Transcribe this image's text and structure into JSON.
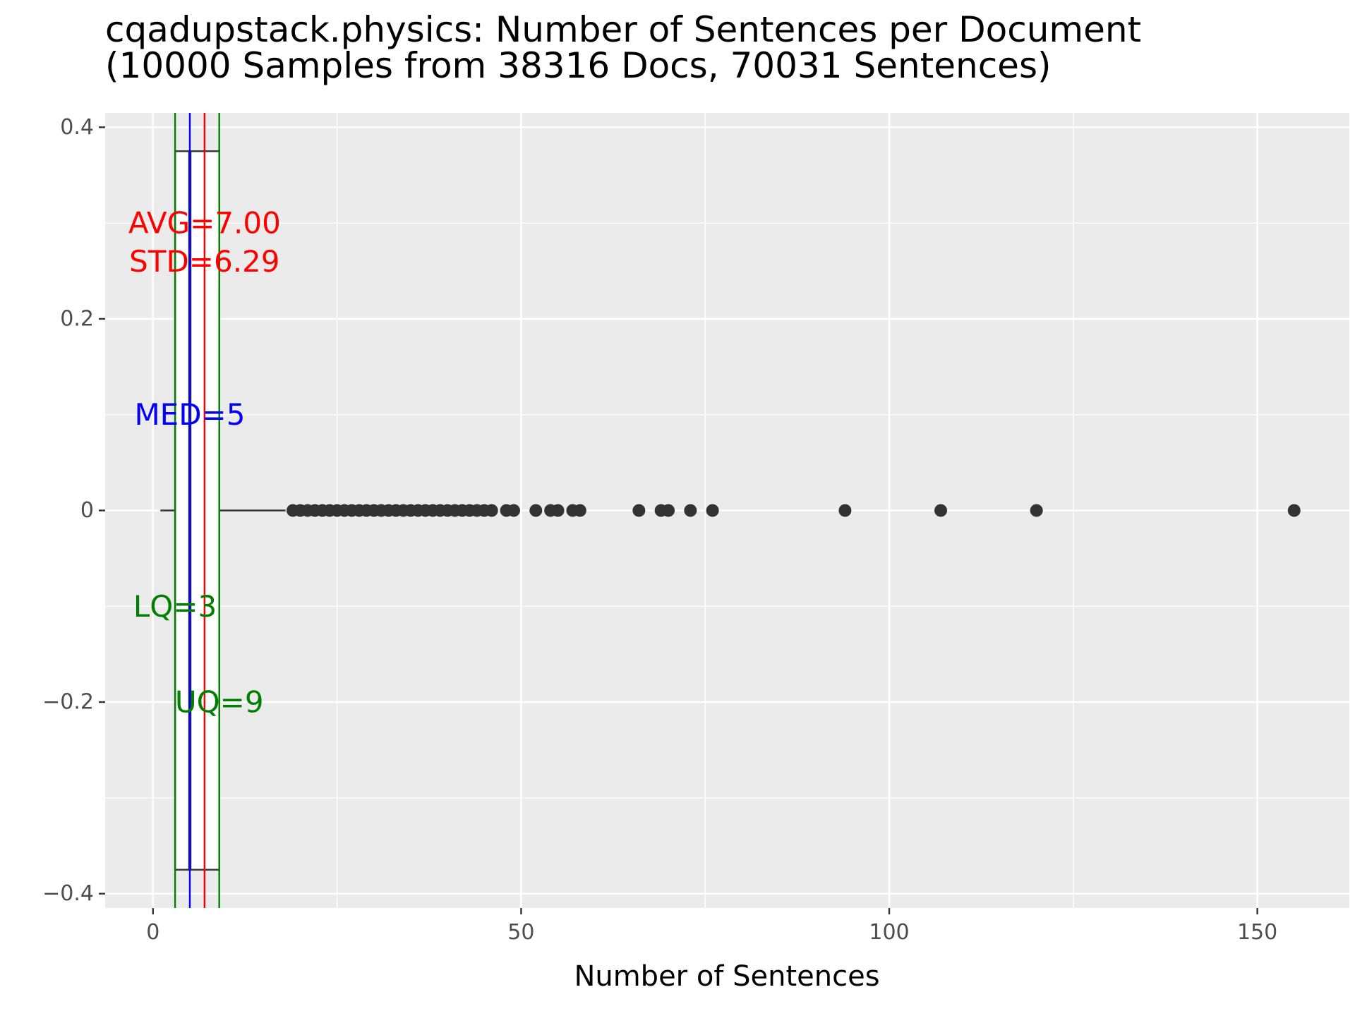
{
  "chart_data": {
    "type": "boxplot",
    "title_lines": [
      "cqadupstack.physics: Number of Sentences per Document",
      "(10000 Samples from 38316 Docs, 70031 Sentences)"
    ],
    "xlabel": "Number of Sentences",
    "ylabel": "",
    "xlim": [
      -6.5,
      162.5
    ],
    "ylim": [
      -0.415,
      0.415
    ],
    "x_ticks": [
      0,
      50,
      100,
      150
    ],
    "x_tick_labels": [
      "0",
      "50",
      "100",
      "150"
    ],
    "y_ticks": [
      -0.4,
      -0.2,
      0,
      0.2,
      0.4
    ],
    "y_tick_labels": [
      "−0.4",
      "−0.2",
      "0",
      "0.2",
      "0.4"
    ],
    "grid": true,
    "box": {
      "lower_whisker": 1,
      "q1": 3,
      "median": 5,
      "q3": 9,
      "upper_whisker": 18,
      "half_width": 0.375
    },
    "outliers": [
      19,
      20,
      21,
      22,
      23,
      24,
      25,
      26,
      27,
      28,
      29,
      30,
      31,
      32,
      33,
      34,
      35,
      36,
      37,
      38,
      39,
      40,
      41,
      42,
      43,
      44,
      45,
      46,
      48,
      49,
      52,
      54,
      55,
      57,
      58,
      66,
      69,
      70,
      73,
      76,
      94,
      107,
      120,
      155
    ],
    "reference_lines": [
      {
        "name": "LQ",
        "x": 3,
        "color": "#008000"
      },
      {
        "name": "UQ",
        "x": 9,
        "color": "#008000"
      },
      {
        "name": "MED",
        "x": 5,
        "color": "#0000ff"
      },
      {
        "name": "AVG",
        "x": 7.0,
        "color": "#ff0000"
      }
    ],
    "annotations": [
      {
        "text": "AVG=7.00",
        "x": 7,
        "y": 0.3,
        "color": "#ff0000"
      },
      {
        "text": "STD=6.29",
        "x": 7,
        "y": 0.26,
        "color": "#ff0000"
      },
      {
        "text": "MED=5",
        "x": 5,
        "y": 0.1,
        "color": "#0000ff"
      },
      {
        "text": "LQ=3",
        "x": 3,
        "y": -0.1,
        "color": "#008000"
      },
      {
        "text": "UQ=9",
        "x": 9,
        "y": -0.2,
        "color": "#008000"
      }
    ],
    "colors": {
      "panel": "#ebebeb",
      "grid": "#ffffff",
      "box": "#333333",
      "points": "#333333"
    }
  }
}
